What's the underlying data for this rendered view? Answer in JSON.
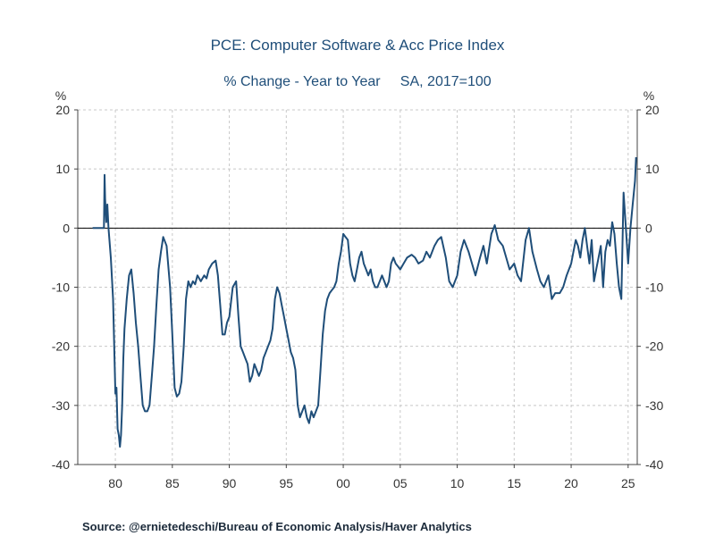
{
  "chart_data": {
    "type": "line",
    "title": "PCE: Computer Software & Acc Price Index",
    "subtitle": "% Change - Year to Year     SA, 2017=100",
    "ylabel_left": "%",
    "ylabel_right": "%",
    "xlim": [
      1976.7,
      2025.8
    ],
    "ylim": [
      -40,
      20
    ],
    "yticks": [
      20,
      10,
      0,
      -10,
      -20,
      -30,
      -40
    ],
    "xticks": [
      {
        "x": 1980,
        "label": "80"
      },
      {
        "x": 1985,
        "label": "85"
      },
      {
        "x": 1990,
        "label": "90"
      },
      {
        "x": 1995,
        "label": "95"
      },
      {
        "x": 2000,
        "label": "00"
      },
      {
        "x": 2005,
        "label": "05"
      },
      {
        "x": 2010,
        "label": "10"
      },
      {
        "x": 2015,
        "label": "15"
      },
      {
        "x": 2020,
        "label": "20"
      },
      {
        "x": 2025,
        "label": "25"
      }
    ],
    "grid": true,
    "series": [
      {
        "color": "#1f4e79",
        "x": [
          1978.0,
          1978.5,
          1978.9,
          1979.0,
          1979.05,
          1979.1,
          1979.2,
          1979.3,
          1979.4,
          1979.6,
          1979.8,
          1980.0,
          1980.1,
          1980.2,
          1980.3,
          1980.4,
          1980.5,
          1980.6,
          1980.7,
          1980.8,
          1981.0,
          1981.2,
          1981.4,
          1981.6,
          1981.8,
          1982.0,
          1982.2,
          1982.4,
          1982.6,
          1982.8,
          1983.0,
          1983.2,
          1983.4,
          1983.6,
          1983.8,
          1984.0,
          1984.2,
          1984.5,
          1984.8,
          1985.0,
          1985.2,
          1985.4,
          1985.6,
          1985.8,
          1986.0,
          1986.2,
          1986.4,
          1986.6,
          1986.8,
          1987.0,
          1987.2,
          1987.5,
          1987.8,
          1988.0,
          1988.2,
          1988.5,
          1988.8,
          1989.0,
          1989.2,
          1989.4,
          1989.6,
          1989.8,
          1990.0,
          1990.3,
          1990.6,
          1990.8,
          1991.0,
          1991.2,
          1991.4,
          1991.6,
          1991.8,
          1992.0,
          1992.2,
          1992.4,
          1992.6,
          1992.8,
          1993.0,
          1993.2,
          1993.4,
          1993.6,
          1993.8,
          1994.0,
          1994.2,
          1994.4,
          1994.6,
          1994.8,
          1995.0,
          1995.2,
          1995.4,
          1995.6,
          1995.8,
          1996.0,
          1996.2,
          1996.4,
          1996.6,
          1996.8,
          1997.0,
          1997.2,
          1997.4,
          1997.6,
          1997.8,
          1998.0,
          1998.2,
          1998.4,
          1998.6,
          1998.8,
          1999.0,
          1999.2,
          1999.4,
          1999.6,
          1999.8,
          2000.0,
          2000.2,
          2000.4,
          2000.6,
          2000.8,
          2001.0,
          2001.2,
          2001.4,
          2001.6,
          2001.8,
          2002.0,
          2002.2,
          2002.4,
          2002.6,
          2002.8,
          2003.0,
          2003.2,
          2003.4,
          2003.6,
          2003.8,
          2004.0,
          2004.2,
          2004.4,
          2004.6,
          2004.8,
          2005.0,
          2005.3,
          2005.6,
          2006.0,
          2006.3,
          2006.6,
          2007.0,
          2007.3,
          2007.6,
          2008.0,
          2008.3,
          2008.6,
          2009.0,
          2009.3,
          2009.6,
          2010.0,
          2010.3,
          2010.6,
          2011.0,
          2011.3,
          2011.6,
          2012.0,
          2012.3,
          2012.6,
          2013.0,
          2013.3,
          2013.6,
          2014.0,
          2014.3,
          2014.6,
          2015.0,
          2015.3,
          2015.6,
          2016.0,
          2016.3,
          2016.6,
          2017.0,
          2017.3,
          2017.6,
          2018.0,
          2018.3,
          2018.6,
          2019.0,
          2019.3,
          2019.6,
          2020.0,
          2020.2,
          2020.4,
          2020.6,
          2020.8,
          2021.0,
          2021.2,
          2021.4,
          2021.6,
          2021.8,
          2022.0,
          2022.2,
          2022.4,
          2022.6,
          2022.8,
          2023.0,
          2023.2,
          2023.4,
          2023.6,
          2023.8,
          2024.0,
          2024.2,
          2024.4,
          2024.6,
          2024.8,
          2025.0,
          2025.2,
          2025.4,
          2025.6,
          2025.7
        ],
        "y": [
          0,
          0,
          0,
          0,
          9,
          5,
          1,
          4,
          0,
          -5,
          -12,
          -28,
          -27,
          -34,
          -35,
          -37,
          -35,
          -30,
          -22,
          -17,
          -12,
          -8,
          -7,
          -11,
          -16,
          -20,
          -25,
          -30,
          -31,
          -31,
          -30,
          -25,
          -20,
          -13,
          -7,
          -4,
          -1.5,
          -3,
          -10,
          -18,
          -27,
          -28.5,
          -28,
          -26,
          -20,
          -12,
          -9,
          -10,
          -9,
          -9.5,
          -8,
          -9,
          -8,
          -8.5,
          -7,
          -6,
          -5.5,
          -8,
          -13,
          -18,
          -18,
          -16,
          -15,
          -10,
          -9,
          -15,
          -20,
          -21,
          -22,
          -23,
          -26,
          -25,
          -23,
          -24,
          -25,
          -24,
          -22,
          -21,
          -20,
          -19,
          -17,
          -12,
          -10,
          -11,
          -13,
          -15,
          -17,
          -19,
          -21,
          -22,
          -24,
          -30,
          -32,
          -31,
          -30,
          -32,
          -33,
          -31,
          -32,
          -31,
          -30,
          -24,
          -18,
          -14,
          -12,
          -11,
          -10.5,
          -10,
          -9,
          -6,
          -4,
          -1,
          -1.5,
          -2,
          -6,
          -8,
          -9,
          -7,
          -5,
          -4,
          -6,
          -7,
          -8,
          -7,
          -9,
          -10,
          -10,
          -9,
          -8,
          -9,
          -10,
          -9,
          -6,
          -5,
          -6,
          -6.5,
          -7,
          -6,
          -5,
          -4.5,
          -5,
          -6,
          -5.5,
          -4,
          -5,
          -3,
          -2,
          -1.5,
          -5,
          -9,
          -10,
          -8,
          -4,
          -2,
          -4,
          -6,
          -8,
          -5,
          -3,
          -6,
          -1,
          0.5,
          -2,
          -3,
          -5,
          -7,
          -6,
          -8,
          -9,
          -2,
          0,
          -4,
          -7,
          -9,
          -10,
          -8,
          -12,
          -11,
          -11,
          -10,
          -8,
          -6,
          -4,
          -2,
          -3,
          -5,
          -2,
          0,
          -3,
          -6,
          -2,
          -9,
          -7,
          -5,
          -3,
          -10,
          -4,
          -2,
          -3,
          1,
          -1,
          -6,
          -10,
          -12,
          6,
          0,
          -6,
          0,
          4,
          8,
          12
        ]
      }
    ]
  },
  "source": "Source:  @ernietedeschi/Bureau of Economic Analysis/Haver Analytics"
}
